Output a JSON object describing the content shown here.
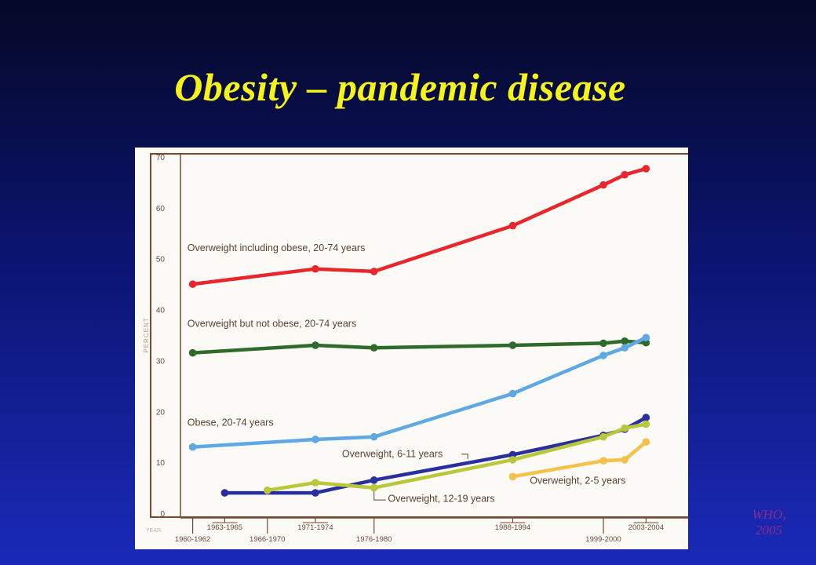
{
  "slide": {
    "title": "Obesity – pandemic disease",
    "credit_line1": "WHO,",
    "credit_line2": "2005"
  },
  "chart_data": {
    "type": "line",
    "xlabel": "YEAR",
    "ylabel": "PERCENT",
    "ylim": [
      0,
      70
    ],
    "yticks": [
      0,
      10,
      20,
      30,
      40,
      50,
      60,
      70
    ],
    "x_periods": [
      {
        "label": "1960-1962",
        "x": 1961,
        "row": "lower"
      },
      {
        "label": "1963-1965",
        "x": 1964,
        "row": "upper"
      },
      {
        "label": "1966-1970",
        "x": 1968,
        "row": "lower"
      },
      {
        "label": "1971-1974",
        "x": 1972.5,
        "row": "upper"
      },
      {
        "label": "1976-1980",
        "x": 1978,
        "row": "lower"
      },
      {
        "label": "1988-1994",
        "x": 1991,
        "row": "upper"
      },
      {
        "label": "1999-2000",
        "x": 1999.5,
        "row": "lower"
      },
      {
        "label": "2003-2004",
        "x": 2003.5,
        "row": "upper"
      }
    ],
    "xlim": [
      1960,
      2004.5
    ],
    "grid": false,
    "series": [
      {
        "name": "Overweight including obese, 20-74 years",
        "color": "#e8262c",
        "points": [
          [
            1961,
            45.0
          ],
          [
            1972.5,
            48.0
          ],
          [
            1978,
            47.5
          ],
          [
            1991,
            56.5
          ],
          [
            1999.5,
            64.5
          ],
          [
            2001.5,
            66.5
          ],
          [
            2003.5,
            67.7
          ]
        ]
      },
      {
        "name": "Overweight but not obese, 20-74 years",
        "color": "#2e6a2a",
        "points": [
          [
            1961,
            31.5
          ],
          [
            1972.5,
            33.0
          ],
          [
            1978,
            32.5
          ],
          [
            1991,
            33.0
          ],
          [
            1999.5,
            33.4
          ],
          [
            2001.5,
            33.8
          ],
          [
            2003.5,
            33.5
          ]
        ]
      },
      {
        "name": "Obese, 20-74 years",
        "color": "#5ea8e6",
        "points": [
          [
            1961,
            13.0
          ],
          [
            1972.5,
            14.5
          ],
          [
            1978,
            15.0
          ],
          [
            1991,
            23.5
          ],
          [
            1999.5,
            31.0
          ],
          [
            2001.5,
            32.5
          ],
          [
            2003.5,
            34.5
          ]
        ]
      },
      {
        "name": "Overweight, 6-11 years",
        "color": "#2a2fa0",
        "points": [
          [
            1964,
            4.0
          ],
          [
            1972.5,
            4.0
          ],
          [
            1978,
            6.5
          ],
          [
            1991,
            11.5
          ],
          [
            1999.5,
            15.3
          ],
          [
            2001.5,
            16.5
          ],
          [
            2003.5,
            18.8
          ]
        ]
      },
      {
        "name": "Overweight, 12-19 years",
        "color": "#b8c83a",
        "points": [
          [
            1968,
            4.5
          ],
          [
            1972.5,
            6.0
          ],
          [
            1978,
            5.0
          ],
          [
            1991,
            10.5
          ],
          [
            1999.5,
            15.0
          ],
          [
            2001.5,
            16.7
          ],
          [
            2003.5,
            17.5
          ]
        ]
      },
      {
        "name": "Overweight, 2-5 years",
        "color": "#f4c24a",
        "points": [
          [
            1991,
            7.2
          ],
          [
            1999.5,
            10.3
          ],
          [
            2001.5,
            10.5
          ],
          [
            2003.5,
            14.0
          ]
        ]
      }
    ],
    "annotations": [
      {
        "series": 0,
        "text": "Overweight including obese, 20-74 years",
        "x": 1960.5,
        "y": 51.5,
        "anchor": "start"
      },
      {
        "series": 1,
        "text": "Overweight but not obese, 20-74 years",
        "x": 1960.5,
        "y": 36.6,
        "anchor": "start"
      },
      {
        "series": 2,
        "text": "Obese, 20-74 years",
        "x": 1960.5,
        "y": 17.2,
        "anchor": "start"
      },
      {
        "series": 3,
        "text": "Overweight, 6-11 years",
        "x": 1975,
        "y": 11.0,
        "anchor": "start"
      },
      {
        "series": 4,
        "text": "Overweight, 12-19 years",
        "x": 1979.3,
        "y": 2.2,
        "anchor": "start"
      },
      {
        "series": 5,
        "text": "Overweight, 2-5 years",
        "x": 1992.6,
        "y": 5.8,
        "anchor": "start"
      }
    ]
  }
}
